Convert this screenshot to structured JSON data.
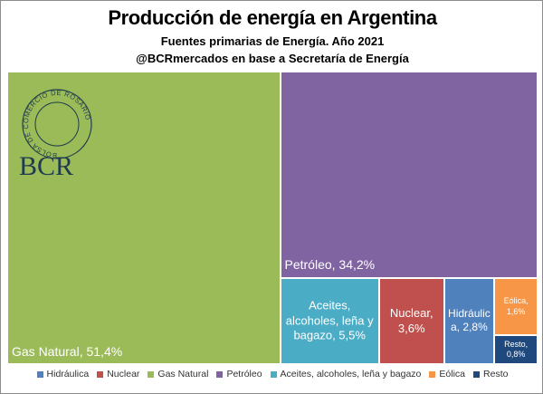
{
  "chart_data": {
    "type": "treemap",
    "title": "Producción de energía en Argentina",
    "subtitle": "Fuentes primarias de Energía. Año 2021",
    "source": "@BCRmercados en base a Secretaría de Energía",
    "logo": {
      "text": "BCR",
      "ring": "BOLSA DE COMERCIO DE ROSARIO"
    },
    "legend": "bottom",
    "series": [
      {
        "name": "Hidráulica",
        "color": "#4f81bd",
        "values": [
          2.8
        ],
        "value_labels": [
          "Hidráulica, 2,8%"
        ]
      },
      {
        "name": "Nuclear",
        "color": "#c0504d",
        "values": [
          3.6
        ],
        "value_labels": [
          "Nuclear, 3,6%"
        ]
      },
      {
        "name": "Gas Natural",
        "color": "#9bbb59",
        "values": [
          51.4
        ],
        "value_labels": [
          "Gas Natural, 51,4%"
        ]
      },
      {
        "name": "Petróleo",
        "color": "#8064a2",
        "values": [
          34.2
        ],
        "value_labels": [
          "Petróleo, 34,2%"
        ]
      },
      {
        "name": "Aceites, alcoholes, leña y bagazo",
        "color": "#4bacc6",
        "values": [
          5.5
        ],
        "value_labels": [
          "Aceites, alcoholes, leña y bagazo, 5,5%"
        ]
      },
      {
        "name": "Eólica",
        "color": "#f79646",
        "values": [
          1.6
        ],
        "value_labels": [
          "Eólica, 1,6%"
        ]
      },
      {
        "name": "Resto",
        "color": "#1f497d",
        "values": [
          0.8
        ],
        "value_labels": [
          "Resto, 0,8%"
        ]
      }
    ]
  }
}
